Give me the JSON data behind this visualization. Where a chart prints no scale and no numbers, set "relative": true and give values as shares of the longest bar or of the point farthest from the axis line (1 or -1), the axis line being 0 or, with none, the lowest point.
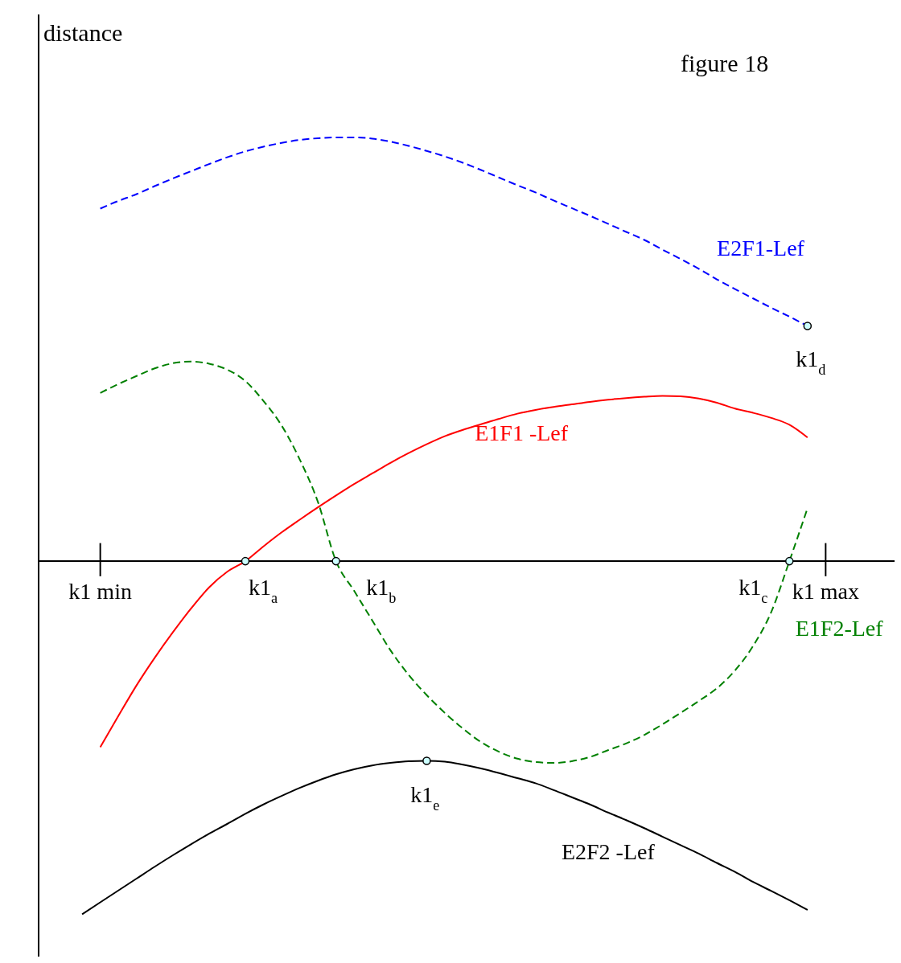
{
  "chart_data": {
    "type": "line",
    "title": "figure 18",
    "ylabel": "distance",
    "relative": true,
    "categories": [
      null,
      "k1 min",
      null,
      null,
      null,
      null,
      null,
      null,
      null,
      null,
      null,
      null,
      null,
      null,
      null,
      null,
      null,
      null,
      null,
      null,
      null,
      null,
      null,
      null,
      null,
      null,
      null,
      null,
      null,
      null,
      null,
      null,
      null,
      null,
      null,
      null,
      null,
      null,
      null,
      null,
      null,
      "k1 max",
      null
    ],
    "series": [
      {
        "name": "E2F1-Lef",
        "color": "#0000ff",
        "line_style": "dashed",
        "marker": "none",
        "values": [
          null,
          0.832,
          0.85,
          0.866,
          0.885,
          0.903,
          0.92,
          0.937,
          0.953,
          0.967,
          0.978,
          0.987,
          0.994,
          0.998,
          1.0,
          1.0,
          0.997,
          0.99,
          0.98,
          0.968,
          0.955,
          0.94,
          0.923,
          0.905,
          0.887,
          0.87,
          0.851,
          0.833,
          0.815,
          0.796,
          0.777,
          0.758,
          0.735,
          0.713,
          0.69,
          0.665,
          0.642,
          0.62,
          0.598,
          0.577,
          0.555,
          null,
          null
        ]
      },
      {
        "name": "E1F1 -Lef",
        "color": "#ff0000",
        "line_style": "solid",
        "marker": "none",
        "values": [
          null,
          -0.439,
          -0.365,
          -0.293,
          -0.228,
          -0.168,
          -0.112,
          -0.062,
          -0.025,
          0,
          0.035,
          0.068,
          0.098,
          0.127,
          0.155,
          0.182,
          0.207,
          0.232,
          0.255,
          0.276,
          0.295,
          0.31,
          0.323,
          0.336,
          0.348,
          0.357,
          0.364,
          0.37,
          0.376,
          0.381,
          0.385,
          0.388,
          0.39,
          0.389,
          0.384,
          0.374,
          0.36,
          0.35,
          0.338,
          0.322,
          0.292,
          null,
          null
        ]
      },
      {
        "name": "E1F2-Lef",
        "color": "#008000",
        "line_style": "dashed",
        "marker": "none",
        "values": [
          null,
          0.397,
          0.418,
          0.437,
          0.455,
          0.467,
          0.471,
          0.466,
          0.452,
          0.425,
          0.378,
          0.32,
          0.24,
          0.14,
          0,
          -0.07,
          -0.14,
          -0.21,
          -0.268,
          -0.316,
          -0.358,
          -0.395,
          -0.427,
          -0.45,
          -0.466,
          -0.474,
          -0.476,
          -0.472,
          -0.462,
          -0.446,
          -0.43,
          -0.41,
          -0.385,
          -0.358,
          -0.33,
          -0.3,
          -0.258,
          -0.2,
          -0.12,
          0,
          0.125,
          null,
          null
        ]
      },
      {
        "name": "E2F2 -Lef",
        "color": "#000000",
        "line_style": "solid",
        "marker": "none",
        "values": [
          -0.833,
          -0.805,
          -0.777,
          -0.749,
          -0.721,
          -0.694,
          -0.668,
          -0.643,
          -0.62,
          -0.596,
          -0.574,
          -0.554,
          -0.535,
          -0.518,
          -0.503,
          -0.491,
          -0.482,
          -0.476,
          -0.472,
          -0.471,
          -0.473,
          -0.48,
          -0.489,
          -0.5,
          -0.512,
          -0.524,
          -0.54,
          -0.557,
          -0.574,
          -0.593,
          -0.611,
          -0.63,
          -0.65,
          -0.67,
          -0.69,
          -0.712,
          -0.733,
          -0.757,
          -0.778,
          -0.8,
          -0.823,
          null,
          null
        ]
      },
      {
        "type": "scatter",
        "color": "#ccffff",
        "marker": "circle",
        "values": [
          null,
          null,
          null,
          null,
          null,
          null,
          null,
          null,
          null,
          0,
          null,
          null,
          null,
          null,
          0,
          null,
          null,
          null,
          null,
          -0.471,
          null,
          null,
          null,
          null,
          null,
          null,
          null,
          null,
          null,
          null,
          null,
          null,
          null,
          null,
          null,
          null,
          null,
          null,
          null,
          0,
          0.555,
          null,
          null
        ]
      }
    ],
    "annotations": [
      "k1$_{a}$",
      "k1$_{b}$",
      "k1$_{e}$",
      "k1$_{c}$",
      "k1$_{d}$"
    ]
  }
}
